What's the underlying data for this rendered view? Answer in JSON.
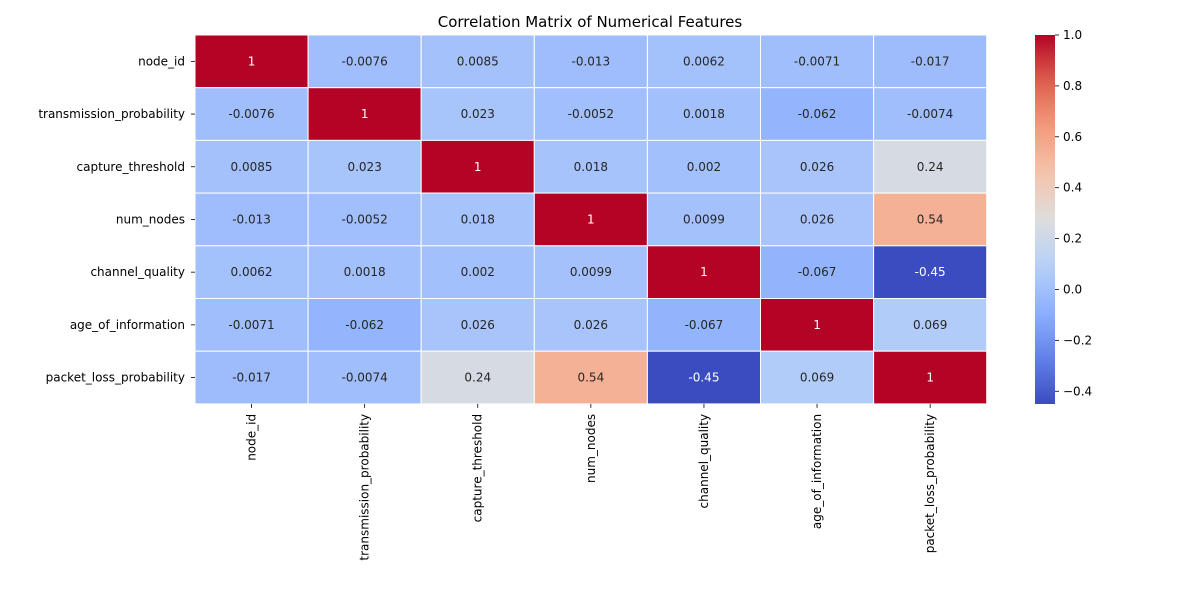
{
  "chart_data": {
    "type": "heatmap",
    "title": "Correlation Matrix of Numerical Features",
    "colormap": "coolwarm",
    "row_labels": [
      "node_id",
      "transmission_probability",
      "capture_threshold",
      "num_nodes",
      "channel_quality",
      "age_of_information",
      "packet_loss_probability"
    ],
    "col_labels": [
      "node_id",
      "transmission_probability",
      "capture_threshold",
      "num_nodes",
      "channel_quality",
      "age_of_information",
      "packet_loss_probability"
    ],
    "values": [
      [
        1,
        -0.0076,
        0.0085,
        -0.013,
        0.0062,
        -0.0071,
        -0.017
      ],
      [
        -0.0076,
        1,
        0.023,
        -0.0052,
        0.0018,
        -0.062,
        -0.0074
      ],
      [
        0.0085,
        0.023,
        1,
        0.018,
        0.002,
        0.026,
        0.24
      ],
      [
        -0.013,
        -0.0052,
        0.018,
        1,
        0.0099,
        0.026,
        0.54
      ],
      [
        0.0062,
        0.0018,
        0.002,
        0.0099,
        1,
        -0.067,
        -0.45
      ],
      [
        -0.0071,
        -0.062,
        0.026,
        0.026,
        -0.067,
        1,
        0.069
      ],
      [
        -0.017,
        -0.0074,
        0.24,
        0.54,
        -0.45,
        0.069,
        1
      ]
    ],
    "cell_text": [
      [
        "1",
        "-0.0076",
        "0.0085",
        "-0.013",
        "0.0062",
        "-0.0071",
        "-0.017"
      ],
      [
        "-0.0076",
        "1",
        "0.023",
        "-0.0052",
        "0.0018",
        "-0.062",
        "-0.0074"
      ],
      [
        "0.0085",
        "0.023",
        "1",
        "0.018",
        "0.002",
        "0.026",
        "0.24"
      ],
      [
        "-0.013",
        "-0.0052",
        "0.018",
        "1",
        "0.0099",
        "0.026",
        "0.54"
      ],
      [
        "0.0062",
        "0.0018",
        "0.002",
        "0.0099",
        "1",
        "-0.067",
        "-0.45"
      ],
      [
        "-0.0071",
        "-0.062",
        "0.026",
        "0.026",
        "-0.067",
        "1",
        "0.069"
      ],
      [
        "-0.017",
        "-0.0074",
        "0.24",
        "0.54",
        "-0.45",
        "0.069",
        "1"
      ]
    ],
    "colorbar": {
      "range": [
        -0.45,
        1.0
      ],
      "ticks": [
        -0.4,
        -0.2,
        0.0,
        0.2,
        0.4,
        0.6,
        0.8,
        1.0
      ],
      "tick_labels": [
        "−0.4",
        "−0.2",
        "0.0",
        "0.2",
        "0.4",
        "0.6",
        "0.8",
        "1.0"
      ]
    }
  }
}
